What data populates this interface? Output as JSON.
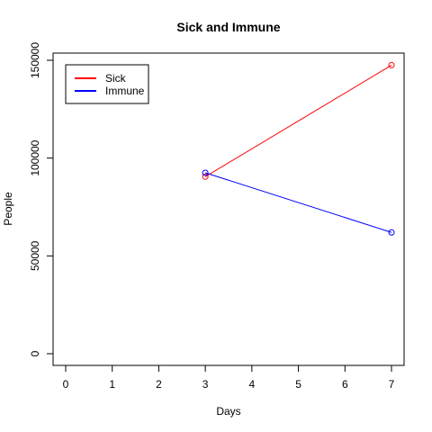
{
  "chart_data": {
    "type": "line",
    "title": "Sick and Immune",
    "xlabel": "Days",
    "ylabel": "People",
    "xlim": [
      0,
      7
    ],
    "ylim": [
      0,
      150000
    ],
    "xticks": [
      "0",
      "1",
      "2",
      "3",
      "4",
      "5",
      "6",
      "7"
    ],
    "yticks": [
      "0",
      "50000",
      "100000",
      "150000"
    ],
    "grid": false,
    "legend_position": "top-left",
    "series": [
      {
        "name": "Sick",
        "color": "#ff0000",
        "x": [
          3,
          7
        ],
        "y": [
          90500,
          147500
        ]
      },
      {
        "name": "Immune",
        "color": "#0000ff",
        "x": [
          3,
          7
        ],
        "y": [
          92500,
          62000
        ]
      }
    ]
  }
}
